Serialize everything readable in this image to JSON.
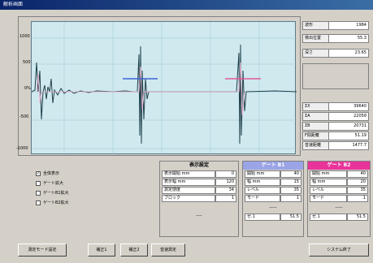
{
  "window": {
    "title": "解析画面"
  },
  "chart": {
    "yticks": [
      "1000",
      "500",
      "0%",
      "-500",
      "-1000"
    ],
    "marker_colors": {
      "gate_b1": "#3a66d6",
      "gate_b2": "#e05a9a"
    }
  },
  "info": {
    "rows_top": [
      {
        "label": "波形",
        "value": "1984"
      },
      {
        "label": "検出位置",
        "value": "55.3"
      },
      {
        "label": "深さ",
        "value": "23.65"
      }
    ],
    "rows_bottom": [
      {
        "label": "ΣX",
        "value": "39640"
      },
      {
        "label": "ΣA",
        "value": "22058"
      },
      {
        "label": "ΣB",
        "value": "20731"
      },
      {
        "label": "F間距離",
        "value": "51.19"
      },
      {
        "label": "音速距離",
        "value": "1477.7"
      }
    ]
  },
  "checks": [
    {
      "label": "全体表示",
      "checked": true
    },
    {
      "label": "ゲート拡大",
      "checked": false
    },
    {
      "label": "ゲートB1拡大",
      "checked": false
    },
    {
      "label": "ゲートB2拡大",
      "checked": false
    }
  ],
  "display_panel": {
    "title": "表示設定",
    "rows": [
      {
        "label": "表示開始 mm",
        "value": "0"
      },
      {
        "label": "表示幅 mm",
        "value": "120"
      },
      {
        "label": "測定感度",
        "value": "34"
      },
      {
        "label": "ブロック",
        "value": "1"
      }
    ],
    "footer": "----"
  },
  "gate_b1": {
    "title": "ゲート B1",
    "color": "#9aa4e6",
    "rows": [
      {
        "label": "開始 mm",
        "value": "40"
      },
      {
        "label": "幅 mm",
        "value": "15"
      },
      {
        "label": "レベル",
        "value": "35"
      },
      {
        "label": "モード",
        "value": "1"
      }
    ],
    "footer_left": "-----",
    "readout_left": "ゼ.1",
    "readout_right": "51.5"
  },
  "gate_b2": {
    "title": "ゲート B2",
    "color": "#e8349a",
    "rows": [
      {
        "label": "開始 mm",
        "value": "40"
      },
      {
        "label": "幅 mm",
        "value": "20"
      },
      {
        "label": "レベル",
        "value": "35"
      },
      {
        "label": "モード",
        "value": "1"
      }
    ],
    "footer_left": "-----",
    "readout_left": "ゼ.1",
    "readout_right": "51.5"
  },
  "buttons": {
    "measure_mode": "測定モード設定",
    "correction1": "補正1",
    "correction2": "補正2",
    "sound_speed": "音速測定",
    "system_end": "システム終了"
  }
}
